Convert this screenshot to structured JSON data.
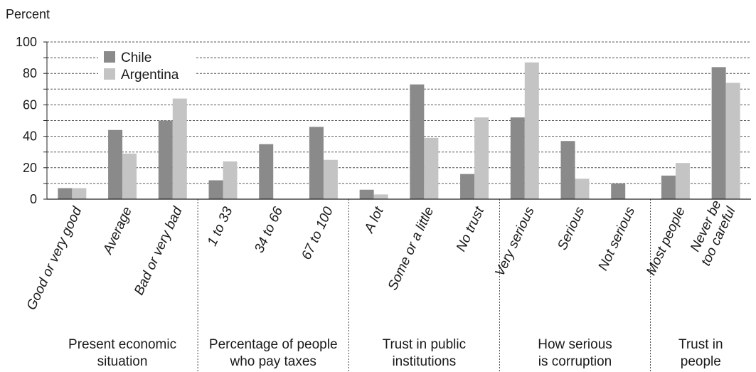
{
  "chart_data": {
    "type": "bar",
    "ylabel": "Percent",
    "ylim": [
      0,
      100
    ],
    "yticks": [
      0,
      20,
      40,
      60,
      80,
      100
    ],
    "grid": true,
    "legend_placement": "top-left",
    "colors": {
      "Chile": "#8a8a8a",
      "Argentina": "#c4c4c4"
    },
    "categories": [
      [
        "Good or very good"
      ],
      [
        "Average"
      ],
      [
        "Bad or very bad"
      ],
      [
        "1 to 33"
      ],
      [
        "34 to 66"
      ],
      [
        "67 to 100"
      ],
      [
        "A lot"
      ],
      [
        "Some or a little"
      ],
      [
        "No trust"
      ],
      [
        "Very serious"
      ],
      [
        "Serious"
      ],
      [
        "Not serious"
      ],
      [
        "Most people"
      ],
      [
        "Never be",
        "too careful"
      ]
    ],
    "groups": [
      {
        "label": [
          "Present economic",
          "situation"
        ],
        "start": 0,
        "count": 3
      },
      {
        "label": [
          "Percentage of people",
          "who pay taxes"
        ],
        "start": 3,
        "count": 3
      },
      {
        "label": [
          "Trust in public",
          "institutions"
        ],
        "start": 6,
        "count": 3
      },
      {
        "label": [
          "How serious",
          "is corruption"
        ],
        "start": 9,
        "count": 3
      },
      {
        "label": [
          "Trust in",
          "people"
        ],
        "start": 12,
        "count": 2
      }
    ],
    "series": [
      {
        "name": "Chile",
        "values": [
          7,
          44,
          50,
          12,
          35,
          46,
          6,
          73,
          16,
          52,
          37,
          10,
          15,
          84
        ]
      },
      {
        "name": "Argentina",
        "values": [
          7,
          29,
          64,
          24,
          0,
          25,
          3,
          39,
          52,
          87,
          13,
          0,
          23,
          74
        ]
      }
    ]
  }
}
